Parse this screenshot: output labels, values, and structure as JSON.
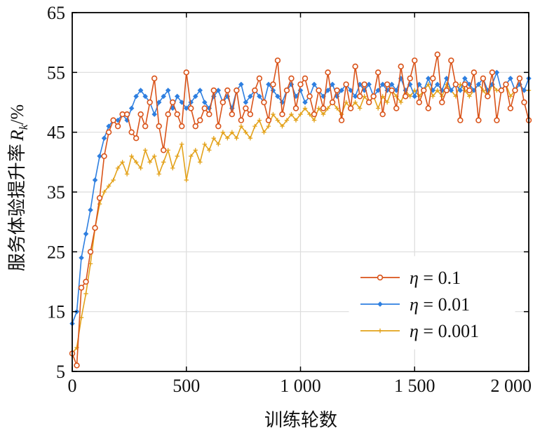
{
  "chart_data": {
    "type": "line",
    "title": "",
    "xlabel": "训练轮数",
    "ylabel": "服务体验提升率",
    "ylabel_symbol": "R",
    "ylabel_subscript": "k",
    "ylabel_unit": "/%",
    "xlim": [
      0,
      2000
    ],
    "ylim": [
      5,
      65
    ],
    "xticks": [
      0,
      500,
      1000,
      1500,
      2000
    ],
    "xtick_labels": [
      "0",
      "500",
      "1 000",
      "1 500",
      "2 000"
    ],
    "yticks": [
      5,
      15,
      25,
      35,
      45,
      55,
      65
    ],
    "ytick_labels": [
      "5",
      "15",
      "25",
      "35",
      "45",
      "55",
      "65"
    ],
    "grid": true,
    "legend_position": "bottom-right",
    "series": [
      {
        "name": "η = 0.1",
        "greek": "η",
        "value_label": " = 0.1",
        "color": "#d95319",
        "marker": "circle",
        "x": [
          0,
          20,
          40,
          60,
          80,
          100,
          120,
          140,
          160,
          180,
          200,
          220,
          240,
          260,
          280,
          300,
          320,
          340,
          360,
          380,
          400,
          420,
          440,
          460,
          480,
          500,
          520,
          540,
          560,
          580,
          600,
          620,
          640,
          660,
          680,
          700,
          720,
          740,
          760,
          780,
          800,
          820,
          840,
          860,
          880,
          900,
          920,
          940,
          960,
          980,
          1000,
          1020,
          1040,
          1060,
          1080,
          1100,
          1120,
          1140,
          1160,
          1180,
          1200,
          1220,
          1240,
          1260,
          1280,
          1300,
          1320,
          1340,
          1360,
          1380,
          1400,
          1420,
          1440,
          1460,
          1480,
          1500,
          1520,
          1540,
          1560,
          1580,
          1600,
          1620,
          1640,
          1660,
          1680,
          1700,
          1720,
          1740,
          1760,
          1780,
          1800,
          1820,
          1840,
          1860,
          1880,
          1900,
          1920,
          1940,
          1960,
          1980,
          2000
        ],
        "values": [
          8,
          6,
          19,
          20,
          25,
          29,
          34,
          41,
          45,
          47,
          46,
          48,
          48,
          45,
          44,
          48,
          46,
          50,
          54,
          46,
          42,
          48,
          50,
          48,
          46,
          55,
          49,
          46,
          47,
          49,
          48,
          52,
          46,
          50,
          52,
          48,
          52,
          47,
          49,
          48,
          52,
          54,
          50,
          47,
          53,
          57,
          48,
          52,
          54,
          49,
          53,
          54,
          51,
          48,
          52,
          49,
          55,
          50,
          52,
          47,
          53,
          49,
          56,
          51,
          53,
          50,
          51,
          55,
          48,
          53,
          52,
          49,
          56,
          51,
          54,
          57,
          50,
          52,
          49,
          54,
          58,
          50,
          52,
          57,
          53,
          47,
          53,
          52,
          55,
          47,
          54,
          51,
          55,
          47,
          52,
          53,
          49,
          52,
          54,
          50,
          47
        ]
      },
      {
        "name": "η = 0.01",
        "greek": "η",
        "value_label": " = 0.01",
        "color": "#2e7fe0",
        "marker": "diamond",
        "x": [
          0,
          20,
          40,
          60,
          80,
          100,
          120,
          140,
          160,
          180,
          200,
          220,
          240,
          260,
          280,
          300,
          320,
          340,
          360,
          380,
          400,
          420,
          440,
          460,
          480,
          500,
          520,
          540,
          560,
          580,
          600,
          620,
          640,
          660,
          680,
          700,
          720,
          740,
          760,
          780,
          800,
          820,
          840,
          860,
          880,
          900,
          920,
          940,
          960,
          980,
          1000,
          1020,
          1040,
          1060,
          1080,
          1100,
          1120,
          1140,
          1160,
          1180,
          1200,
          1220,
          1240,
          1260,
          1280,
          1300,
          1320,
          1340,
          1360,
          1380,
          1400,
          1420,
          1440,
          1460,
          1480,
          1500,
          1520,
          1540,
          1560,
          1580,
          1600,
          1620,
          1640,
          1660,
          1680,
          1700,
          1720,
          1740,
          1760,
          1780,
          1800,
          1820,
          1840,
          1860,
          1880,
          1900,
          1920,
          1940,
          1960,
          1980,
          2000
        ],
        "values": [
          13,
          15,
          24,
          28,
          32,
          37,
          41,
          44,
          46,
          47,
          47,
          48,
          47,
          49,
          51,
          52,
          51,
          50,
          48,
          50,
          51,
          52,
          49,
          51,
          50,
          49,
          50,
          51,
          52,
          50,
          49,
          51,
          52,
          50,
          51,
          49,
          52,
          53,
          50,
          51,
          52,
          51,
          50,
          53,
          52,
          51,
          50,
          52,
          53,
          51,
          52,
          50,
          51,
          53,
          52,
          51,
          52,
          53,
          51,
          52,
          53,
          52,
          51,
          53,
          52,
          53,
          51,
          52,
          53,
          52,
          53,
          52,
          54,
          52,
          53,
          51,
          53,
          52,
          54,
          52,
          53,
          52,
          54,
          52,
          53,
          52,
          54,
          53,
          52,
          53,
          54,
          52,
          53,
          55,
          52,
          53,
          54,
          52,
          53,
          52,
          54
        ]
      },
      {
        "name": "η = 0.001",
        "greek": "η",
        "value_label": " = 0.001",
        "color": "#e3a21a",
        "marker": "plus",
        "x": [
          0,
          20,
          40,
          60,
          80,
          100,
          120,
          140,
          160,
          180,
          200,
          220,
          240,
          260,
          280,
          300,
          320,
          340,
          360,
          380,
          400,
          420,
          440,
          460,
          480,
          500,
          520,
          540,
          560,
          580,
          600,
          620,
          640,
          660,
          680,
          700,
          720,
          740,
          760,
          780,
          800,
          820,
          840,
          860,
          880,
          900,
          920,
          940,
          960,
          980,
          1000,
          1020,
          1040,
          1060,
          1080,
          1100,
          1120,
          1140,
          1160,
          1180,
          1200,
          1220,
          1240,
          1260,
          1280,
          1300,
          1320,
          1340,
          1360,
          1380,
          1400,
          1420,
          1440,
          1460,
          1480,
          1500,
          1520,
          1540,
          1560,
          1580,
          1600,
          1620,
          1640,
          1660,
          1680,
          1700,
          1720,
          1740,
          1760,
          1780,
          1800,
          1820,
          1840,
          1860,
          1880,
          1900,
          1920,
          1940,
          1960,
          1980,
          2000
        ],
        "values": [
          8,
          9,
          14,
          18,
          23,
          29,
          33,
          35,
          36,
          37,
          39,
          40,
          38,
          41,
          40,
          39,
          42,
          40,
          41,
          38,
          40,
          42,
          39,
          41,
          43,
          37,
          41,
          42,
          40,
          43,
          42,
          44,
          43,
          45,
          44,
          45,
          44,
          46,
          45,
          44,
          46,
          47,
          45,
          46,
          48,
          47,
          46,
          47,
          48,
          47,
          48,
          49,
          48,
          47,
          49,
          48,
          49,
          50,
          49,
          48,
          50,
          49,
          50,
          49,
          51,
          50,
          51,
          49,
          51,
          50,
          52,
          51,
          50,
          52,
          51,
          52,
          51,
          52,
          53,
          51,
          52,
          51,
          53,
          52,
          51,
          53,
          52,
          51,
          52,
          53,
          52,
          51,
          53,
          52,
          52,
          53,
          51,
          52,
          53,
          52,
          52
        ]
      }
    ]
  }
}
